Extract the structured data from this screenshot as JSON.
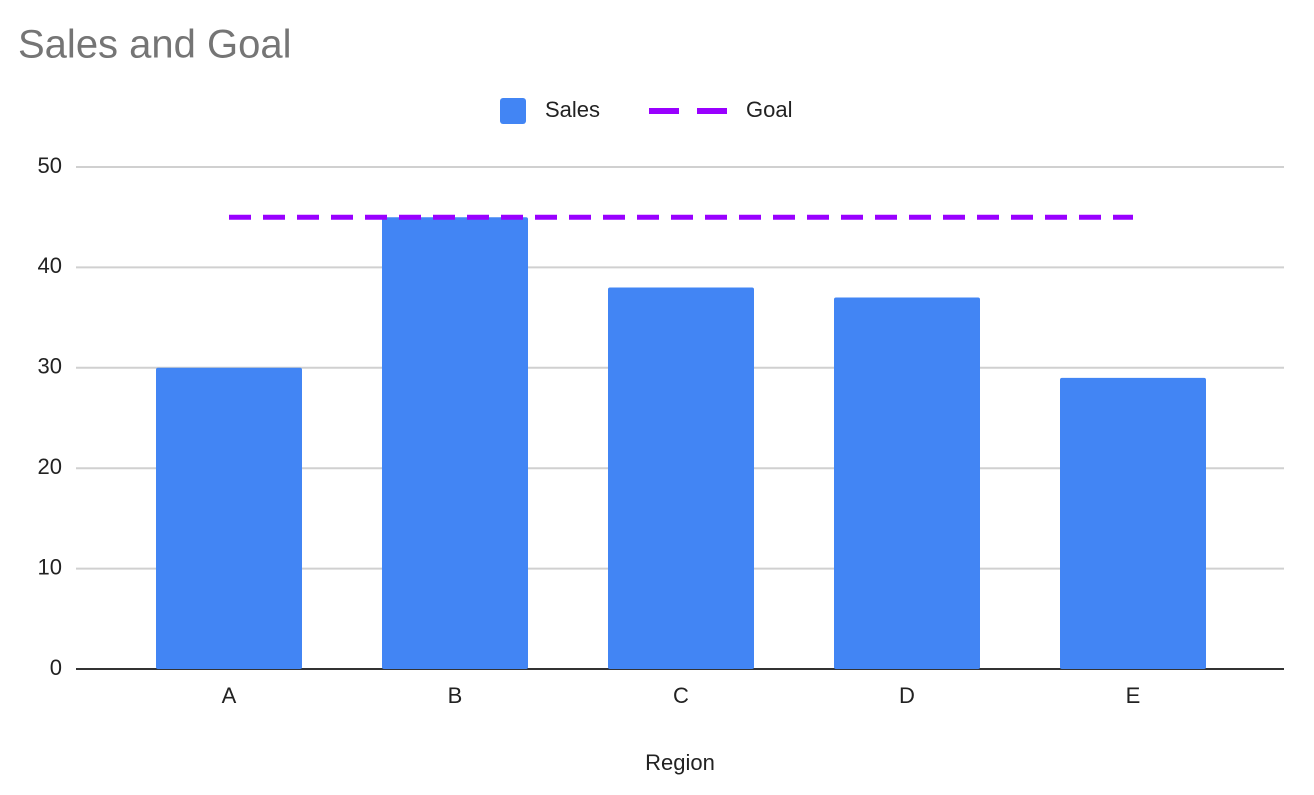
{
  "chart_data": {
    "type": "bar",
    "title": "Sales and Goal",
    "x_label": "Region",
    "categories": [
      "A",
      "B",
      "C",
      "D",
      "E"
    ],
    "series": [
      {
        "name": "Sales",
        "type": "bar",
        "color": "#4285f4",
        "values": [
          30,
          45,
          38,
          37,
          29
        ]
      },
      {
        "name": "Goal",
        "type": "line",
        "color": "#9900ff",
        "dashed": true,
        "values": [
          45,
          45,
          45,
          45,
          45
        ]
      }
    ],
    "ylim": [
      0,
      50
    ],
    "yticks": [
      0,
      10,
      20,
      30,
      40,
      50
    ],
    "grid": true,
    "legend": "top"
  }
}
